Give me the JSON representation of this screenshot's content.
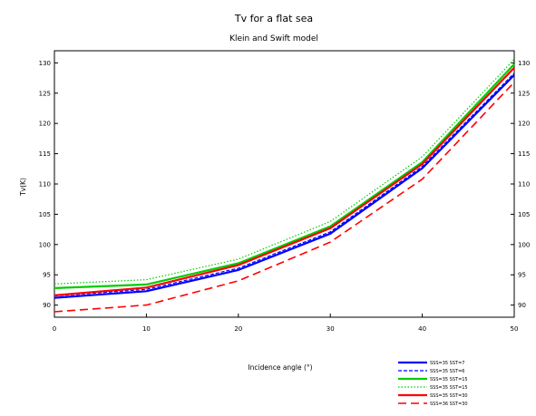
{
  "chart_data": {
    "type": "line",
    "title": "Tv for a flat sea",
    "subtitle": "Klein and Swift model",
    "xlabel": "Incidence angle (°)",
    "ylabel": "Tv(K)",
    "xlim": [
      0,
      50
    ],
    "ylim": [
      88,
      132
    ],
    "x_ticks": [
      0,
      10,
      20,
      30,
      40,
      50
    ],
    "y_ticks": [
      90,
      95,
      100,
      105,
      110,
      115,
      120,
      125,
      130
    ],
    "grid": false,
    "legend_position": "bottom-right",
    "x": [
      0,
      10,
      20,
      30,
      40,
      50
    ],
    "series": [
      {
        "name": "SSS=35 SST=7",
        "color": "#0000ff",
        "dash": "solid",
        "width": 2.2,
        "values": [
          91.2,
          92.3,
          95.8,
          101.8,
          112.6,
          128.0
        ]
      },
      {
        "name": "SSS=35 SST=6",
        "color": "#0000ff",
        "dash": "dashed",
        "width": 1.2,
        "values": [
          91.5,
          92.6,
          96.1,
          102.1,
          112.9,
          128.3
        ]
      },
      {
        "name": "SSS=35 SST=15",
        "color": "#00cc00",
        "dash": "solid",
        "width": 2.2,
        "values": [
          92.8,
          93.4,
          96.9,
          103.0,
          113.6,
          129.8
        ]
      },
      {
        "name": "SSS=35 SST=15",
        "color": "#00cc00",
        "dash": "dotted",
        "width": 1.2,
        "values": [
          93.5,
          94.2,
          97.6,
          103.8,
          114.5,
          130.6
        ]
      },
      {
        "name": "SSS=35 SST=30",
        "color": "#ff0000",
        "dash": "solid",
        "width": 2.2,
        "values": [
          91.6,
          92.9,
          96.6,
          102.7,
          113.3,
          129.2
        ]
      },
      {
        "name": "SSS=36 SST=30",
        "color": "#ff0000",
        "dash": "longdash",
        "width": 1.6,
        "values": [
          88.9,
          90.0,
          94.0,
          100.4,
          110.8,
          126.8
        ]
      }
    ]
  }
}
